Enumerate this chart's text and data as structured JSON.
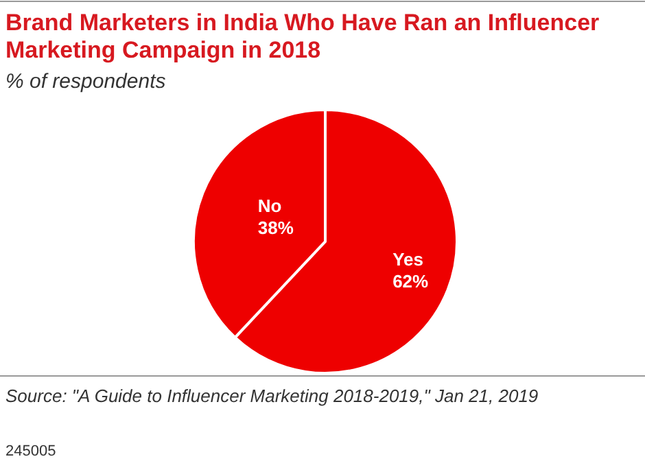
{
  "chart_data": {
    "type": "pie",
    "title": "Brand Marketers in India Who Have Ran an Influencer Marketing Campaign in 2018",
    "subtitle": "% of respondents",
    "categories": [
      "Yes",
      "No"
    ],
    "values": [
      62,
      38
    ],
    "colors": [
      "#ee0000",
      "#ee0000"
    ],
    "value_labels": [
      "62%",
      "38%"
    ],
    "annotations": [
      "Source: \"A Guide to Influencer Marketing 2018-2019,\" Jan 21, 2019",
      "245005"
    ]
  }
}
